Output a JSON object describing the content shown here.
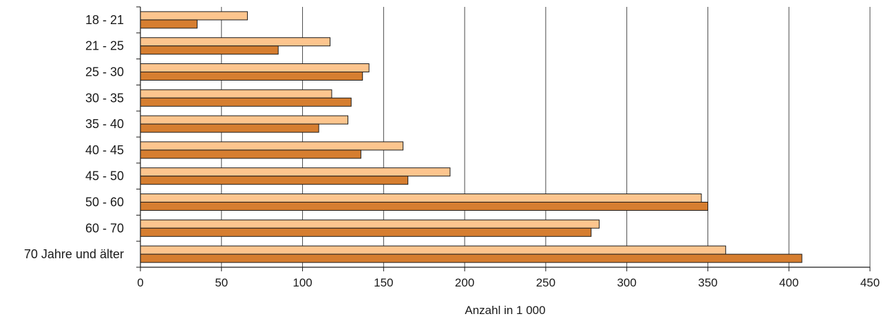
{
  "chart_data": {
    "type": "bar",
    "orientation": "horizontal",
    "categories": [
      "18 - 21",
      "21 - 25",
      "25 - 30",
      "30 - 35",
      "35 - 40",
      "40 - 45",
      "45 - 50",
      "50 - 60",
      "60 - 70",
      "70 Jahre und älter"
    ],
    "series": [
      {
        "values": [
          66,
          117,
          141,
          118,
          128,
          162,
          191,
          346,
          283,
          361
        ],
        "color": "#fdc58e"
      },
      {
        "values": [
          35,
          85,
          137,
          130,
          110,
          136,
          165,
          350,
          278,
          408
        ],
        "color": "#d67e30"
      }
    ],
    "xlabel": "Anzahl in 1 000",
    "xlim": [
      0,
      450
    ],
    "xticks": [
      0,
      50,
      100,
      150,
      200,
      250,
      300,
      350,
      400,
      450
    ],
    "grid": "vertical",
    "bar_outline_color": "#1a1a1a"
  }
}
